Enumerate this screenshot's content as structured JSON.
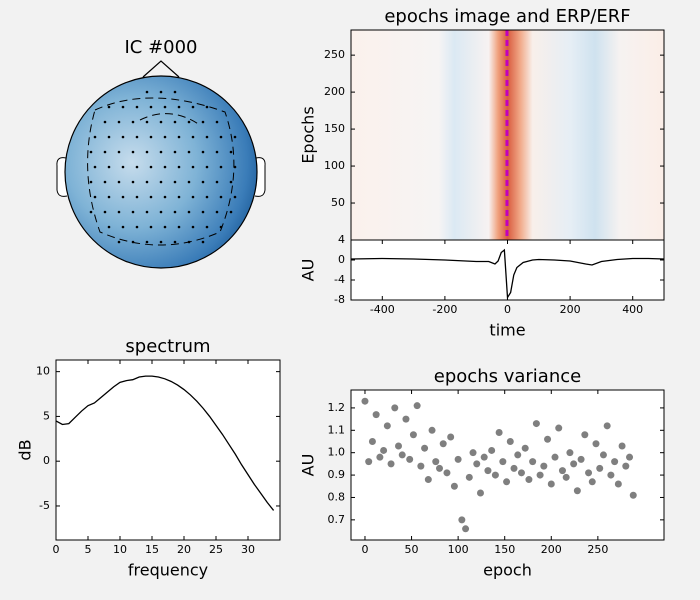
{
  "chart_data": [
    {
      "type": "topomap",
      "title": "IC #000"
    },
    {
      "type": "image",
      "title": "epochs image and ERP/ERF",
      "ylabel": "Epochs",
      "ylim": [
        0,
        284
      ],
      "yticks": [
        50,
        100,
        150,
        200,
        250
      ]
    },
    {
      "type": "line",
      "xlabel": "time",
      "ylabel": "AU",
      "x": [
        -500,
        -400,
        -300,
        -200,
        -100,
        -60,
        -40,
        -30,
        -20,
        -10,
        0,
        10,
        20,
        30,
        50,
        80,
        100,
        150,
        200,
        250,
        270,
        300,
        350,
        400,
        450,
        500
      ],
      "series": [
        {
          "color": "#000000",
          "values": [
            0.2,
            0.3,
            0.2,
            0,
            -0.3,
            -0.3,
            -0.8,
            -0.2,
            1.5,
            2.0,
            -7.5,
            -6.5,
            -3,
            -1.5,
            -0.5,
            0,
            0.1,
            0,
            -0.2,
            -0.8,
            -1.0,
            -0.3,
            0.1,
            0.3,
            0.3,
            0.2
          ]
        }
      ],
      "xlim": [
        -500,
        500
      ],
      "xticks": [
        -400,
        -200,
        0,
        200,
        400
      ],
      "ylim": [
        -8,
        4
      ],
      "yticks": [
        -8,
        -4,
        0,
        4
      ]
    },
    {
      "type": "line",
      "title": "spectrum",
      "xlabel": "frequency",
      "ylabel": "dB",
      "x": [
        0,
        1,
        2,
        3,
        4,
        5,
        6,
        7,
        8,
        9,
        10,
        11,
        12,
        13,
        14,
        15,
        16,
        17,
        18,
        19,
        20,
        21,
        22,
        23,
        24,
        25,
        26,
        27,
        28,
        29,
        30,
        31,
        32,
        33,
        34
      ],
      "series": [
        {
          "color": "#000000",
          "values": [
            4.5,
            4.1,
            4.2,
            4.9,
            5.6,
            6.2,
            6.5,
            7.1,
            7.7,
            8.3,
            8.8,
            9.0,
            9.1,
            9.4,
            9.5,
            9.5,
            9.4,
            9.2,
            8.9,
            8.5,
            8.0,
            7.4,
            6.7,
            5.9,
            5.0,
            4.0,
            3.0,
            1.9,
            0.8,
            -0.4,
            -1.5,
            -2.6,
            -3.6,
            -4.6,
            -5.5
          ]
        }
      ],
      "xlim": [
        0,
        35
      ],
      "xticks": [
        0,
        5,
        10,
        15,
        20,
        25,
        30
      ],
      "ylim": [
        -8.8,
        11.3
      ],
      "yticks": [
        -5,
        0,
        5,
        10
      ]
    },
    {
      "type": "scatter",
      "title": "epochs variance",
      "xlabel": "epoch",
      "ylabel": "AU",
      "color": "#000000",
      "x": [
        0,
        4,
        8,
        12,
        16,
        20,
        24,
        28,
        32,
        36,
        40,
        44,
        48,
        52,
        56,
        60,
        64,
        68,
        72,
        76,
        80,
        84,
        88,
        92,
        96,
        100,
        104,
        108,
        112,
        116,
        120,
        124,
        128,
        132,
        136,
        140,
        144,
        148,
        152,
        156,
        160,
        164,
        168,
        172,
        176,
        180,
        184,
        188,
        192,
        196,
        200,
        204,
        208,
        212,
        216,
        220,
        224,
        228,
        232,
        236,
        240,
        244,
        248,
        252,
        256,
        260,
        264,
        268,
        272,
        276,
        280,
        284,
        288
      ],
      "values": [
        1.23,
        0.96,
        1.05,
        1.17,
        0.98,
        1.01,
        1.12,
        0.95,
        1.2,
        1.03,
        0.99,
        1.15,
        0.97,
        1.08,
        1.21,
        0.94,
        1.02,
        0.88,
        1.1,
        0.96,
        0.93,
        1.04,
        0.91,
        1.07,
        0.85,
        0.97,
        0.7,
        0.66,
        0.89,
        1.0,
        0.95,
        0.82,
        0.98,
        0.92,
        1.01,
        0.9,
        1.09,
        0.96,
        0.87,
        1.05,
        0.93,
        0.99,
        0.91,
        1.02,
        0.88,
        0.96,
        1.13,
        0.9,
        0.94,
        1.06,
        0.86,
        0.98,
        1.11,
        0.92,
        0.89,
        1.0,
        0.95,
        0.83,
        0.97,
        1.08,
        0.91,
        0.87,
        1.04,
        0.93,
        0.99,
        1.12,
        0.9,
        0.96,
        0.86,
        1.03,
        0.94,
        0.98,
        0.81
      ],
      "xlim": [
        -15,
        321
      ],
      "xticks": [
        0,
        50,
        100,
        150,
        200,
        250
      ],
      "ylim": [
        0.61,
        1.28
      ],
      "yticks": [
        0.7,
        0.8,
        0.9,
        {
          "value": 1,
          "label": "1.0"
        },
        1.1,
        1.2
      ]
    }
  ]
}
